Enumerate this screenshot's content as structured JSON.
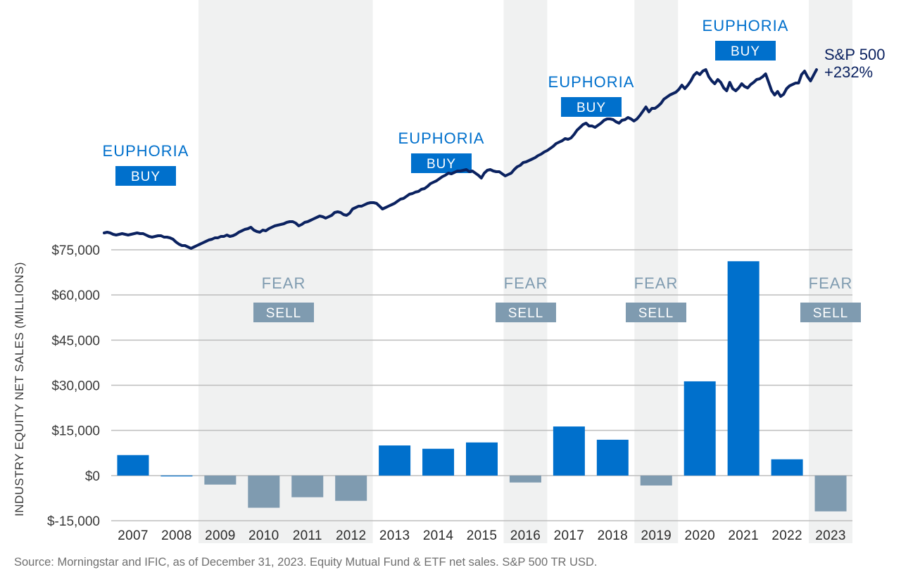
{
  "chart_data": {
    "type": "bar",
    "title": "",
    "ylabel": "INDUSTRY EQUITY NET SALES (MILLIONS)",
    "xlabel": "",
    "ylim": [
      -15000,
      75000
    ],
    "yticks": [
      75000,
      60000,
      45000,
      30000,
      15000,
      0,
      -15000
    ],
    "ytick_labels": [
      "$75,000",
      "$60,000",
      "$45,000",
      "$30,000",
      "$15,000",
      "$0",
      "$-15,000"
    ],
    "grid": true,
    "categories": [
      "2007",
      "2008",
      "2009",
      "2010",
      "2011",
      "2012",
      "2013",
      "2014",
      "2015",
      "2016",
      "2017",
      "2018",
      "2019",
      "2020",
      "2021",
      "2022",
      "2023"
    ],
    "series": [
      {
        "name": "Industry Equity Net Sales (Millions)",
        "values": [
          6800,
          -200,
          -3000,
          -10700,
          -7200,
          -8400,
          10000,
          8900,
          11000,
          -2300,
          16300,
          11900,
          -3300,
          31300,
          71200,
          5400,
          -11900
        ],
        "positive_color": "#0070cc",
        "negative_color": "#7f9bb0"
      }
    ],
    "shaded_periods": [
      {
        "from": "2009",
        "to": "2012"
      },
      {
        "from": "2016",
        "to": "2016"
      },
      {
        "from": "2019",
        "to": "2019"
      },
      {
        "from": "2023",
        "to": "2023"
      }
    ],
    "line_series": {
      "name": "S&P 500",
      "label_line1": "S&P 500",
      "label_line2": "+232%",
      "color": "#0b2260",
      "index_start": 100,
      "index_end": 332,
      "x_range": [
        2007.0,
        2024.0
      ],
      "values": [
        100,
        101,
        100,
        98,
        97,
        98,
        99,
        98,
        97,
        98,
        99,
        100,
        99,
        99,
        97,
        95,
        94,
        95,
        96,
        96,
        94,
        94,
        93,
        91,
        87,
        84,
        82,
        82,
        80,
        78,
        80,
        82,
        84,
        86,
        88,
        90,
        91,
        93,
        93,
        95,
        95,
        97,
        95,
        96,
        98,
        101,
        103,
        105,
        106,
        108,
        104,
        102,
        101,
        104,
        103,
        106,
        108,
        110,
        111,
        112,
        113,
        115,
        116,
        116,
        114,
        110,
        112,
        115,
        116,
        118,
        120,
        122,
        124,
        123,
        121,
        123,
        125,
        129,
        130,
        129,
        126,
        125,
        128,
        134,
        136,
        138,
        138,
        140,
        142,
        143,
        143,
        142,
        138,
        134,
        136,
        138,
        140,
        142,
        145,
        148,
        149,
        152,
        155,
        156,
        158,
        159,
        162,
        163,
        166,
        170,
        172,
        174,
        177,
        180,
        182,
        185,
        184,
        186,
        188,
        188,
        189,
        190,
        187,
        188,
        185,
        182,
        178,
        185,
        189,
        190,
        188,
        187,
        187,
        184,
        181,
        183,
        185,
        190,
        194,
        196,
        200,
        201,
        203,
        205,
        207,
        210,
        212,
        215,
        217,
        220,
        223,
        227,
        229,
        231,
        234,
        233,
        235,
        240,
        246,
        250,
        254,
        256,
        252,
        252,
        250,
        253,
        256,
        260,
        262,
        262,
        261,
        258,
        256,
        260,
        261,
        264,
        262,
        259,
        262,
        267,
        273,
        279,
        272,
        277,
        277,
        280,
        284,
        290,
        293,
        296,
        298,
        300,
        304,
        310,
        305,
        310,
        316,
        324,
        328,
        325,
        330,
        332,
        322,
        316,
        312,
        318,
        314,
        306,
        302,
        314,
        305,
        302,
        306,
        312,
        308,
        306,
        311,
        314,
        318,
        319,
        322,
        326,
        314,
        302,
        296,
        301,
        294,
        297,
        305,
        309,
        311,
        313,
        313,
        325,
        330,
        322,
        316,
        324,
        332
      ]
    },
    "annotations": [
      {
        "type": "euphoria",
        "label": "EUPHORIA",
        "badge": "BUY",
        "at": "2007"
      },
      {
        "type": "fear",
        "label": "FEAR",
        "badge": "SELL",
        "at": "2010-2011"
      },
      {
        "type": "euphoria",
        "label": "EUPHORIA",
        "badge": "BUY",
        "at": "2014"
      },
      {
        "type": "fear",
        "label": "FEAR",
        "badge": "SELL",
        "at": "2016"
      },
      {
        "type": "euphoria",
        "label": "EUPHORIA",
        "badge": "BUY",
        "at": "2017-2018"
      },
      {
        "type": "fear",
        "label": "FEAR",
        "badge": "SELL",
        "at": "2019"
      },
      {
        "type": "euphoria",
        "label": "EUPHORIA",
        "badge": "BUY",
        "at": "2021"
      },
      {
        "type": "fear",
        "label": "FEAR",
        "badge": "SELL",
        "at": "2023"
      }
    ],
    "legend": "none"
  },
  "source_note": "Source: Morningstar and IFIC, as of December 31, 2023. Equity Mutual Fund & ETF net sales. S&P 500 TR USD."
}
